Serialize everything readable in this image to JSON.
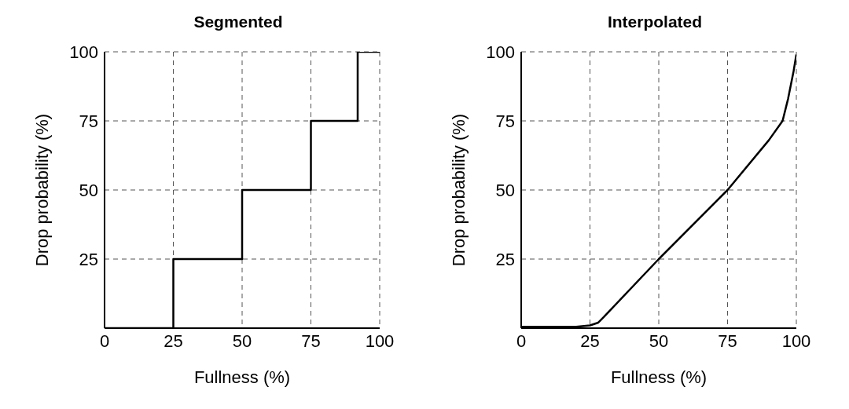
{
  "chart_data": [
    {
      "type": "step",
      "title": "Segmented",
      "xlabel": "Fullness (%)",
      "ylabel": "Drop probability (%)",
      "x": [
        0,
        25,
        50,
        75,
        92,
        100
      ],
      "values": [
        0,
        25,
        50,
        75,
        100,
        100
      ],
      "color": "#000000",
      "xlim": [
        0,
        100
      ],
      "xticks": [
        0,
        25,
        50,
        75,
        100
      ],
      "ylim": [
        0,
        100
      ],
      "yticks": [
        25,
        50,
        75,
        100
      ],
      "grid": true,
      "line_style": "solid"
    },
    {
      "type": "line",
      "title": "Interpolated",
      "xlabel": "Fullness (%)",
      "ylabel": "Drop probability (%)",
      "x": [
        0,
        20,
        25,
        28,
        30,
        50,
        75,
        90,
        95,
        97,
        99,
        100
      ],
      "values": [
        0.5,
        0.5,
        1,
        2,
        4,
        25,
        50,
        68,
        75,
        83,
        93,
        99
      ],
      "color": "#000000",
      "xlim": [
        0,
        100
      ],
      "xticks": [
        0,
        25,
        50,
        75,
        100
      ],
      "ylim": [
        0,
        100
      ],
      "yticks": [
        25,
        50,
        75,
        100
      ],
      "grid": true,
      "line_style": "solid"
    }
  ]
}
